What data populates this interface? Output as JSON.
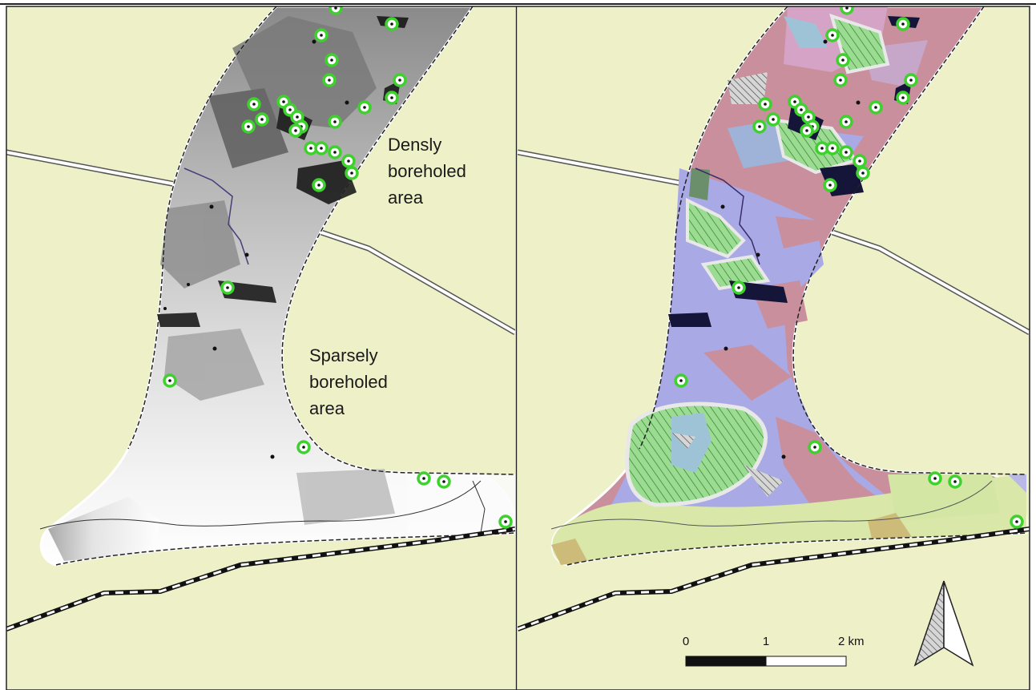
{
  "left_panel": {
    "annotation_dense": [
      "Densly",
      "boreholed",
      "area"
    ],
    "annotation_sparse": [
      "Sparsely",
      "boreholed",
      "area"
    ]
  },
  "right_panel": {
    "scale_bar": {
      "labels": [
        "0",
        "1",
        "2 km"
      ]
    },
    "north_arrow": "north-arrow-icon"
  },
  "colors": {
    "background_land": "#eef0c8",
    "borehole_marker": "#3ed12e",
    "sand_clay_red": "#c98f9d",
    "blue_unit": "#a9a9e6",
    "green_hatch": "#8ed68a",
    "yellow_green": "#d9e7a8"
  }
}
